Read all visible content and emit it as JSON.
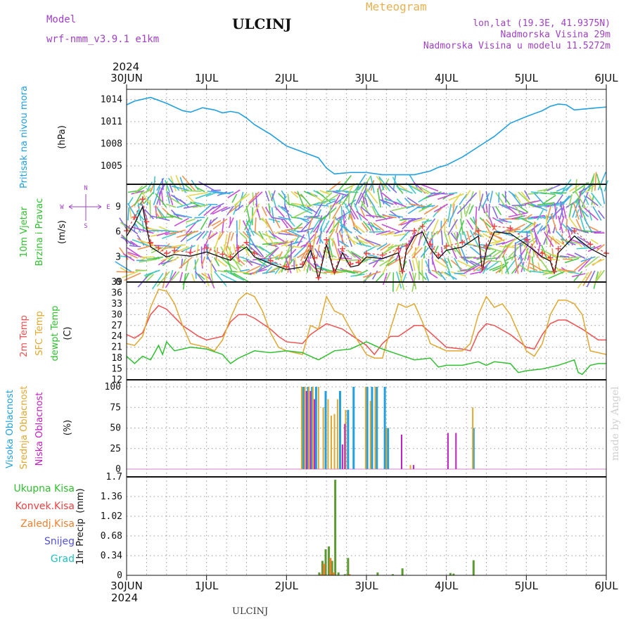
{
  "header": {
    "title": "ULCINJ",
    "product": "Meteogram",
    "model_label": "Model",
    "model_value": "wrf-nmm_v3.9.1  e1km",
    "location_line1": "lon,lat (19.3E, 41.9375N)",
    "location_line2": "Nadmorska Visina 29m",
    "location_line3": "Nadmorska Visina u modelu 11.5272m",
    "footer": "ULCINJ",
    "credit": "made by Angel"
  },
  "x_axis": {
    "year": "2024",
    "ticks": [
      "30JUN",
      "1JUL",
      "2JUL",
      "3JUL",
      "4JUL",
      "5JUL",
      "6JUL"
    ]
  },
  "colors": {
    "pressure": "#20a0e0",
    "temp2m": "#f05050",
    "sfc_temp": "#e0a830",
    "dewpoint": "#30c030",
    "high_cloud": "#20a0e0",
    "mid_cloud": "#e0a830",
    "low_cloud": "#c020c0",
    "total_precip": "#30c030",
    "convective": "#f04040",
    "frozen": "#f08030",
    "snow": "#5050e0",
    "hail": "#20c0c0",
    "wind_speed": "#111111",
    "wind_gust": "#f04040"
  },
  "chart_data": [
    {
      "type": "line",
      "name": "pressure",
      "ylabel_main": "Pritisak na nivou mora",
      "ylabel_unit": "(hPa)",
      "y_ticks": [
        1005,
        1008,
        1011,
        1014
      ],
      "ylim": [
        1002.5,
        1015.4
      ],
      "series": [
        {
          "x": [
            0,
            0.1,
            0.3,
            0.5,
            0.7,
            0.8,
            0.95,
            1.1,
            1.2,
            1.3,
            1.4,
            1.5,
            1.6,
            1.8,
            2.0,
            2.2,
            2.4,
            2.5,
            2.6,
            2.8,
            3.0,
            3.2,
            3.4,
            3.6,
            3.8,
            3.9,
            4.0,
            4.2,
            4.4,
            4.6,
            4.8,
            5.0,
            5.2,
            5.3,
            5.4,
            5.5,
            5.6,
            5.8,
            6.0
          ],
          "values": [
            1013.3,
            1013.8,
            1014.3,
            1013.5,
            1012.5,
            1012.3,
            1012.9,
            1012.6,
            1012.2,
            1012.4,
            1012.2,
            1011.5,
            1010.6,
            1009.3,
            1007.7,
            1006.9,
            1006.1,
            1004.7,
            1003.9,
            1004.1,
            1004.1,
            1003.8,
            1003.8,
            1003.8,
            1004.3,
            1004.8,
            1005.1,
            1006.2,
            1007.6,
            1009.0,
            1010.8,
            1011.7,
            1012.5,
            1013.1,
            1013.4,
            1013.3,
            1012.6,
            1012.8,
            1013.0
          ]
        }
      ]
    },
    {
      "type": "barbs-line",
      "name": "wind",
      "ylabel_main": "10m Vjetar",
      "ylabel_sub": "Brzina i Pravac",
      "ylabel_unit": "(m/s)",
      "compass": {
        "n": "N",
        "s": "S",
        "e": "E",
        "w": "W"
      },
      "y_ticks": [
        0,
        3,
        6,
        9
      ],
      "ylim": [
        0,
        11.7
      ],
      "series": [
        {
          "x": [
            0,
            0.1,
            0.2,
            0.25,
            0.3,
            0.4,
            0.5,
            0.6,
            0.8,
            1.0,
            1.2,
            1.3,
            1.4,
            1.5,
            1.6,
            1.8,
            2.0,
            2.2,
            2.3,
            2.35,
            2.4,
            2.5,
            2.6,
            2.7,
            2.8,
            2.9,
            3.0,
            3.2,
            3.4,
            3.45,
            3.5,
            3.6,
            3.7,
            3.8,
            3.9,
            4.0,
            4.2,
            4.4,
            4.45,
            4.5,
            4.6,
            4.8,
            5.0,
            5.2,
            5.3,
            5.35,
            5.4,
            5.6,
            5.8,
            6.0
          ],
          "values": [
            5.5,
            7.0,
            9.0,
            6.5,
            4.2,
            3.6,
            3.0,
            3.3,
            3.1,
            3.6,
            2.9,
            2.6,
            3.6,
            4.2,
            3.0,
            2.2,
            1.5,
            1.8,
            3.8,
            2.5,
            0.3,
            4.5,
            1.0,
            3.5,
            1.8,
            2.0,
            3.0,
            2.8,
            3.5,
            1.0,
            3.8,
            5.5,
            6.0,
            4.0,
            2.8,
            3.8,
            4.2,
            5.5,
            1.3,
            3.8,
            6.0,
            5.8,
            4.5,
            3.0,
            2.5,
            1.0,
            3.5,
            5.5,
            4.0,
            3.0
          ]
        }
      ]
    },
    {
      "type": "line",
      "name": "temperature",
      "ylabel_main": "2m Temp",
      "ylabel_sfc": "SFC Temp",
      "ylabel_dew": "dewpt Temp",
      "ylabel_unit": "(C)",
      "y_ticks": [
        12,
        15,
        18,
        21,
        24,
        27,
        30,
        33,
        36,
        39
      ],
      "ylim": [
        12,
        39
      ],
      "series": [
        {
          "name": "2m",
          "x": [
            0,
            0.1,
            0.2,
            0.3,
            0.4,
            0.5,
            0.7,
            0.9,
            1.0,
            1.2,
            1.3,
            1.4,
            1.5,
            1.6,
            1.8,
            1.9,
            2.0,
            2.2,
            2.3,
            2.4,
            2.5,
            2.7,
            2.8,
            3.0,
            3.1,
            3.2,
            3.3,
            3.4,
            3.5,
            3.6,
            3.7,
            3.8,
            4.0,
            4.2,
            4.3,
            4.4,
            4.5,
            4.6,
            4.8,
            5.0,
            5.1,
            5.2,
            5.3,
            5.4,
            5.5,
            5.7,
            5.9,
            6.0
          ],
          "values": [
            24.5,
            23.5,
            25,
            30,
            32.5,
            31.5,
            27,
            24,
            23,
            24,
            28,
            30,
            30,
            29,
            26,
            24,
            22.5,
            22,
            24.5,
            26,
            27.5,
            26,
            24.5,
            21.5,
            19,
            22,
            24,
            24,
            25.5,
            27,
            27,
            25,
            21,
            20.5,
            20,
            25,
            27.5,
            27,
            24.5,
            21,
            20.5,
            24.5,
            27.5,
            28.5,
            28.5,
            26,
            23,
            23
          ]
        },
        {
          "name": "sfc",
          "x": [
            0,
            0.1,
            0.2,
            0.3,
            0.4,
            0.5,
            0.6,
            0.7,
            0.8,
            1.0,
            1.1,
            1.2,
            1.3,
            1.4,
            1.5,
            1.6,
            1.7,
            1.8,
            1.9,
            2.0,
            2.1,
            2.2,
            2.3,
            2.4,
            2.5,
            2.6,
            2.7,
            2.8,
            3.0,
            3.1,
            3.2,
            3.3,
            3.4,
            3.5,
            3.6,
            3.7,
            3.8,
            4.0,
            4.2,
            4.3,
            4.4,
            4.5,
            4.6,
            4.7,
            4.8,
            5.0,
            5.1,
            5.2,
            5.3,
            5.4,
            5.5,
            5.6,
            5.7,
            5.8,
            6.0
          ],
          "values": [
            22,
            21.5,
            24,
            32,
            37,
            36.5,
            33,
            27,
            22,
            21,
            20,
            23,
            29,
            34,
            36,
            35,
            31,
            25,
            21,
            20,
            19.5,
            19,
            27,
            26,
            35,
            31,
            30,
            26,
            19,
            18,
            18,
            26,
            33,
            32,
            33,
            28,
            22,
            20,
            20,
            22,
            30,
            35,
            32,
            33,
            30,
            20,
            18.5,
            22,
            30,
            34,
            34,
            33,
            30,
            20,
            19
          ]
        },
        {
          "name": "dewpt",
          "x": [
            0,
            0.1,
            0.2,
            0.3,
            0.4,
            0.45,
            0.5,
            0.6,
            0.8,
            1.0,
            1.2,
            1.3,
            1.4,
            1.6,
            1.8,
            2.0,
            2.2,
            2.4,
            2.6,
            2.8,
            3.0,
            3.2,
            3.4,
            3.6,
            3.8,
            3.9,
            4.0,
            4.2,
            4.4,
            4.5,
            4.6,
            4.8,
            4.9,
            5.0,
            5.2,
            5.4,
            5.6,
            5.65,
            5.7,
            5.8,
            5.9,
            6.0
          ],
          "values": [
            18.5,
            16.5,
            18.5,
            17.5,
            21.5,
            19,
            22.5,
            20,
            21,
            20.5,
            19,
            16.5,
            18,
            20,
            19.5,
            20,
            19.5,
            17.5,
            20,
            20.5,
            22.5,
            20.5,
            19,
            17.5,
            18,
            15.5,
            16,
            16,
            17,
            16,
            17,
            16.5,
            14,
            14.5,
            15,
            16,
            17.5,
            14,
            13.5,
            16,
            16.5,
            16.5
          ]
        }
      ]
    },
    {
      "type": "bar",
      "name": "clouds",
      "ylabel_high": "Visoka Oblacnost",
      "ylabel_mid": "Srednja Oblacnost",
      "ylabel_low": "Niska Oblacnost",
      "ylabel_unit": "(%)",
      "y_ticks": [
        0,
        25,
        50,
        75,
        100
      ],
      "ylim": [
        0,
        100
      ],
      "series": [
        {
          "name": "high",
          "x": [
            2.21,
            2.27,
            2.32,
            2.37,
            2.49,
            2.67,
            2.77,
            2.84,
            3.01,
            3.07,
            3.13,
            3.23,
            3.27,
            4.34
          ],
          "values": [
            100,
            100,
            100,
            100,
            95,
            95,
            72,
            100,
            100,
            100,
            100,
            100,
            50,
            50
          ]
        },
        {
          "name": "mid",
          "x": [
            2.19,
            2.23,
            2.28,
            2.33,
            2.4,
            2.46,
            2.52,
            2.56,
            2.6,
            2.64,
            2.74,
            2.99,
            3.05,
            3.11,
            3.25,
            3.55,
            4.33
          ],
          "values": [
            100,
            100,
            100,
            100,
            100,
            75,
            85,
            65,
            67,
            85,
            72,
            100,
            83,
            100,
            50,
            5,
            75
          ]
        },
        {
          "name": "low",
          "x": [
            2.25,
            2.3,
            2.35,
            2.7,
            2.73,
            3.44,
            3.59,
            4.02,
            4.12
          ],
          "values": [
            95,
            95,
            85,
            30,
            55,
            42,
            5,
            44,
            44
          ]
        }
      ]
    },
    {
      "type": "bar",
      "name": "precip",
      "ylabel_main": "1hr Precip",
      "ylabel_unit": "(mm)",
      "legend": [
        "Ukupna Kisa",
        "Konvek.Kisa",
        "Zaledj.Kisa",
        "Snijeg",
        "Grad"
      ],
      "y_ticks": [
        0,
        0.34,
        0.68,
        1.02,
        1.36,
        1.7
      ],
      "ylim": [
        0,
        1.7
      ],
      "series": [
        {
          "name": "total",
          "x": [
            2.41,
            2.45,
            2.49,
            2.53,
            2.57,
            2.61,
            2.65,
            2.73,
            2.77,
            3.14,
            3.33,
            3.45,
            4.05,
            4.09,
            4.34
          ],
          "values": [
            0.05,
            0.25,
            0.45,
            0.5,
            0.25,
            1.65,
            0.05,
            0.02,
            0.3,
            0.05,
            0.02,
            0.12,
            0.04,
            0.03,
            0.26
          ]
        },
        {
          "name": "convective",
          "x": [
            2.43,
            2.47,
            2.55,
            2.59,
            2.79
          ],
          "values": [
            0.02,
            0.2,
            0.3,
            0.05,
            0.02
          ]
        }
      ]
    }
  ]
}
